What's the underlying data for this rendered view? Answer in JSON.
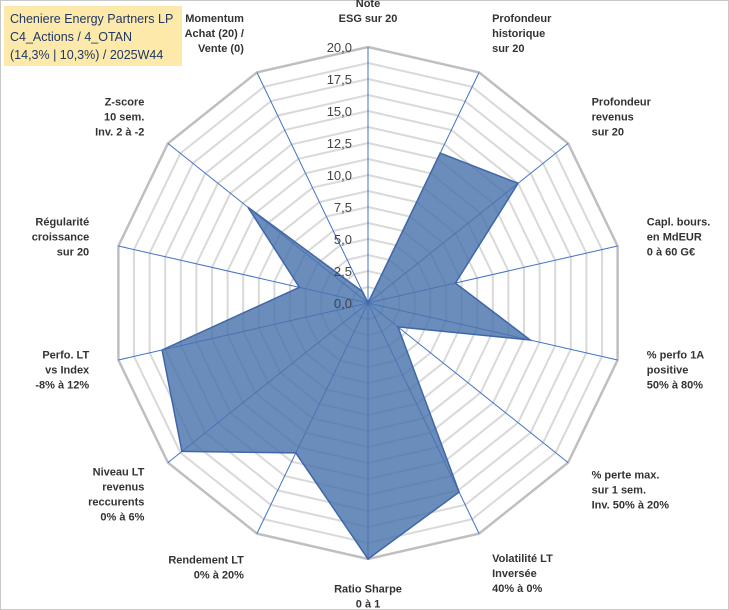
{
  "title": {
    "line1": "Cheniere Energy Partners LP",
    "line2": "C4_Actions / 4_OTAN",
    "line3": "(14,3% | 10,3%) / 2025W44"
  },
  "colors": {
    "fill": "#4a74ad",
    "stroke": "#3f66a8",
    "grid_ring": "#d9d9d9",
    "grid_outer": "#bfbfbf",
    "spoke": "#4472c4",
    "title_bg": "#fde9a9"
  },
  "chart_data": {
    "type": "radar",
    "rmin": 0,
    "rmax": 20,
    "ring_step": 1.25,
    "tick_labels": [
      "0,0",
      "2,5",
      "5,0",
      "7,5",
      "10,0",
      "12,5",
      "15,0",
      "17,5",
      "20,0"
    ],
    "axes": [
      {
        "lines": [
          "Note",
          "ESG sur 20"
        ],
        "value": 0
      },
      {
        "lines": [
          "Profondeur",
          "historique",
          "sur 20"
        ],
        "value": 13
      },
      {
        "lines": [
          "Profondeur",
          "revenus",
          "sur 20"
        ],
        "value": 15
      },
      {
        "lines": [
          "Capl. bours.",
          "en MdEUR",
          "0 à 60 G€"
        ],
        "value": 7
      },
      {
        "lines": [
          "% perfo 1A",
          "positive",
          "50% à 80%"
        ],
        "value": 13
      },
      {
        "lines": [
          "% perte max.",
          "sur 1 sem.",
          "Inv. 50% à 20%"
        ],
        "value": 3
      },
      {
        "lines": [
          "Volatilité LT",
          "Inversée",
          "40% à 0%"
        ],
        "value": 16.4
      },
      {
        "lines": [
          "Ratio Sharpe",
          "0 à 1"
        ],
        "value": 20
      },
      {
        "lines": [
          "Rendement LT",
          "0% à 20%"
        ],
        "value": 13
      },
      {
        "lines": [
          "Niveau LT",
          "revenus",
          "reccurents",
          "0% à 6%"
        ],
        "value": 18.6
      },
      {
        "lines": [
          "Perfo. LT",
          "vs Index",
          "-8% à 12%"
        ],
        "value": 16.5
      },
      {
        "lines": [
          "Régularité",
          "croissance",
          "sur 20"
        ],
        "value": 5.5
      },
      {
        "lines": [
          "Z-score",
          "10 sem.",
          "Inv. 2 à -2"
        ],
        "value": 12
      },
      {
        "lines": [
          "Momentum",
          "Achat (20) /",
          "Vente (0)"
        ],
        "value": 1
      }
    ]
  }
}
